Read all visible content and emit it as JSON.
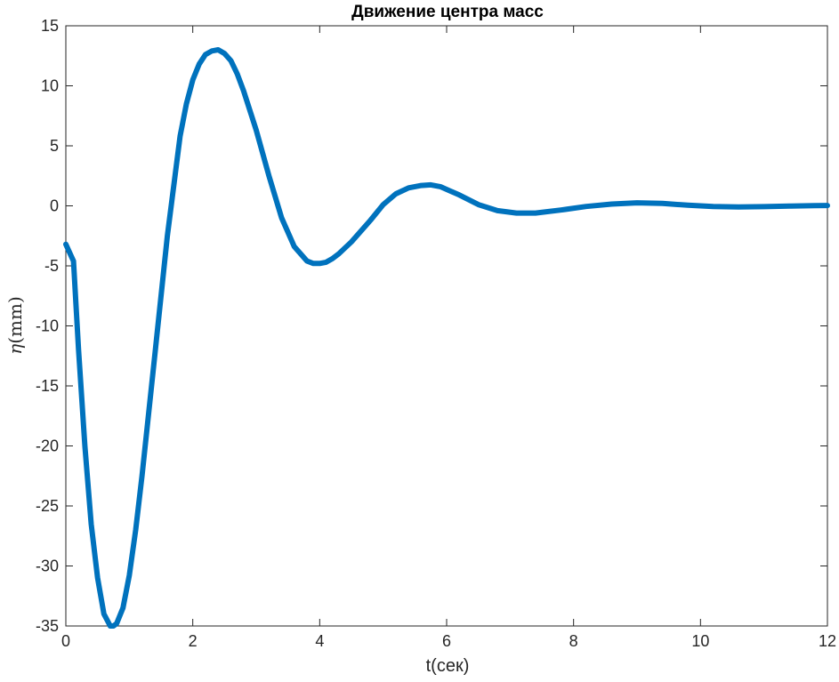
{
  "chart_data": {
    "type": "line",
    "title": "Движение центра масс",
    "xlabel": "t(сек)",
    "ylabel_symbol": "η",
    "ylabel_unit": "(mm)",
    "xlim": [
      0,
      12
    ],
    "ylim": [
      -35,
      15
    ],
    "xticks": [
      0,
      2,
      4,
      6,
      8,
      10,
      12
    ],
    "yticks": [
      15,
      10,
      5,
      0,
      -5,
      -10,
      -15,
      -20,
      -25,
      -30,
      -35
    ],
    "grid": false,
    "line_color": "#0072BD",
    "series": [
      {
        "x": [
          0,
          0.12,
          0.2,
          0.3,
          0.4,
          0.5,
          0.6,
          0.7,
          0.75,
          0.8,
          0.9,
          1.0,
          1.1,
          1.2,
          1.4,
          1.6,
          1.8,
          1.9,
          2.0,
          2.1,
          2.2,
          2.3,
          2.4,
          2.5,
          2.6,
          2.7,
          2.8,
          3.0,
          3.2,
          3.4,
          3.6,
          3.8,
          3.9,
          4.0,
          4.1,
          4.2,
          4.3,
          4.5,
          4.8,
          5.0,
          5.2,
          5.4,
          5.6,
          5.75,
          5.9,
          6.2,
          6.5,
          6.8,
          7.1,
          7.4,
          7.8,
          8.2,
          8.6,
          9.0,
          9.4,
          9.8,
          10.2,
          10.6,
          11.0,
          11.4,
          11.8,
          12.0
        ],
        "y": [
          -3.2,
          -4.6,
          -12,
          -20,
          -26.5,
          -31,
          -34,
          -35,
          -35,
          -34.8,
          -33.5,
          -30.8,
          -27,
          -22.5,
          -12.5,
          -2.5,
          5.8,
          8.5,
          10.5,
          11.8,
          12.6,
          12.9,
          13.0,
          12.7,
          12.1,
          11.0,
          9.6,
          6.3,
          2.5,
          -1.0,
          -3.4,
          -4.6,
          -4.8,
          -4.8,
          -4.7,
          -4.4,
          -4.0,
          -3.0,
          -1.2,
          0.1,
          1.0,
          1.5,
          1.7,
          1.75,
          1.6,
          0.9,
          0.1,
          -0.4,
          -0.6,
          -0.6,
          -0.35,
          -0.05,
          0.15,
          0.25,
          0.2,
          0.05,
          -0.05,
          -0.1,
          -0.07,
          -0.02,
          0.02,
          0.03
        ]
      }
    ]
  }
}
